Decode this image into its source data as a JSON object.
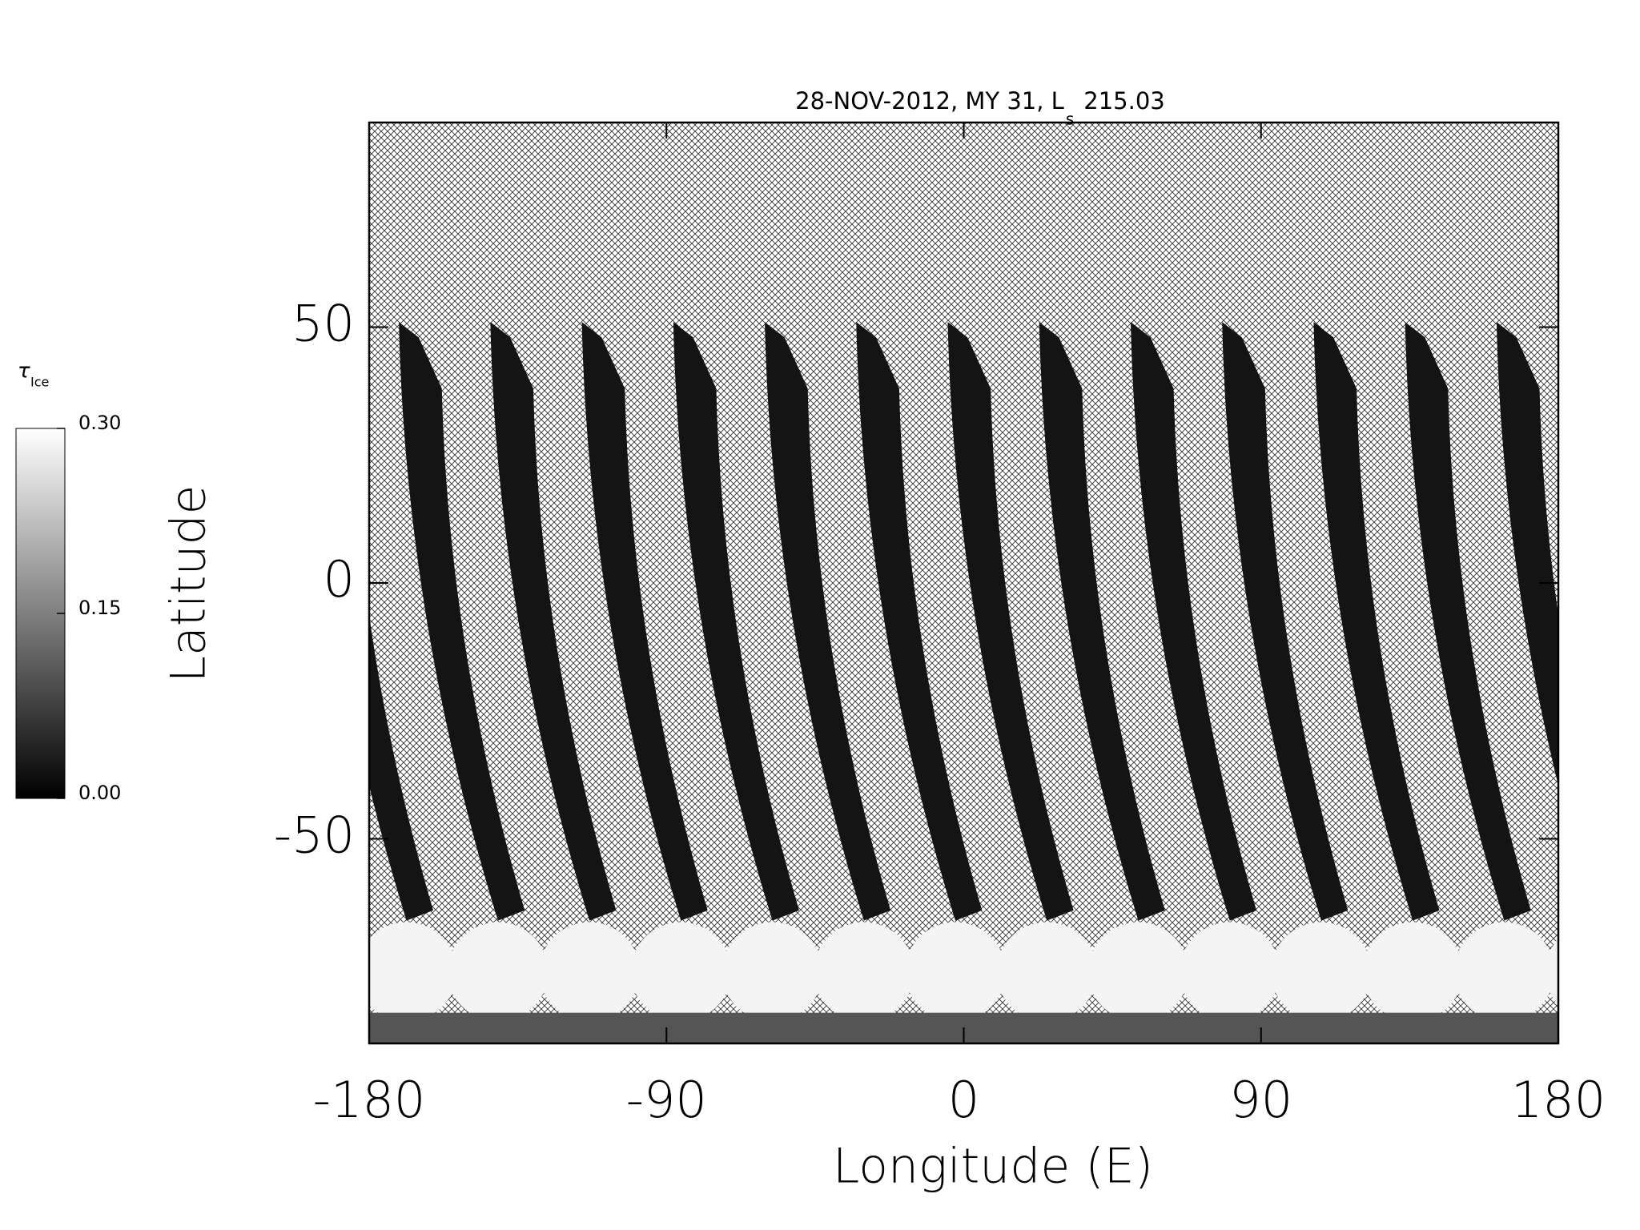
{
  "chart_data": {
    "type": "map",
    "title": "28-NOV-2012, MY 31,  L",
    "title_subscript": "s",
    "title_suffix": "215.03",
    "x_label": "Longitude (E)",
    "y_label": "Latitude",
    "xlim": [
      -180,
      180
    ],
    "xticks": [
      -180,
      -90,
      0,
      90,
      180
    ],
    "ylim": [
      -90,
      90
    ],
    "yticks": [
      -50,
      0,
      50
    ],
    "colorbar_label": "τ",
    "colorbar_label_subscript": "Ice",
    "colorbar_lim": [
      0,
      0.3
    ],
    "colorbar_ticks": [
      {
        "value": 0,
        "label": "0.00"
      },
      {
        "value": 0.15,
        "label": "0.15"
      },
      {
        "value": 0.3,
        "label": "0.30"
      }
    ]
  }
}
